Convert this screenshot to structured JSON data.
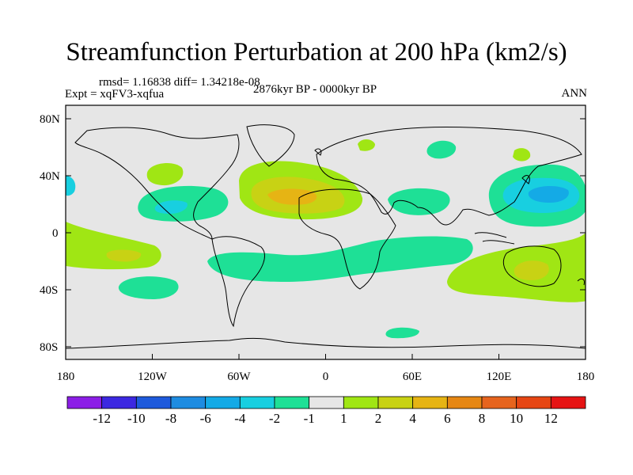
{
  "title": "Streamfunction Perturbation at 200 hPa (km2/s)",
  "stats": "rmsd= 1.16838 diff= 1.34218e-08",
  "expt": "Expt = xqFV3-xqfua",
  "period": "2876kyr BP - 0000kyr BP",
  "season": "ANN",
  "lat_labels": [
    "80N",
    "40N",
    "0",
    "40S",
    "80S"
  ],
  "lon_labels": [
    "180",
    "120W",
    "60W",
    "0",
    "60E",
    "120E",
    "180"
  ],
  "colorbar": {
    "labels": [
      "-12",
      "-10",
      "-8",
      "-6",
      "-4",
      "-2",
      "-1",
      "1",
      "2",
      "4",
      "6",
      "8",
      "10",
      "12"
    ],
    "colors": [
      "#8c1ee6",
      "#3c28e1",
      "#1e5adc",
      "#1e8ce1",
      "#14aae6",
      "#18cfe0",
      "#1ee096",
      "#e6e6e6",
      "#a0e614",
      "#c8d214",
      "#e6b414",
      "#e68714",
      "#e6641e",
      "#e64614",
      "#e61414"
    ]
  },
  "field_colors": {
    "background": "#e6e6e6",
    "neg_1_2": "#1ee096",
    "neg_2_4": "#18cfe0",
    "neg_4_6": "#14aae6",
    "pos_1_2": "#a0e614",
    "pos_2_4": "#c8d214",
    "pos_4_6": "#e6b414"
  }
}
